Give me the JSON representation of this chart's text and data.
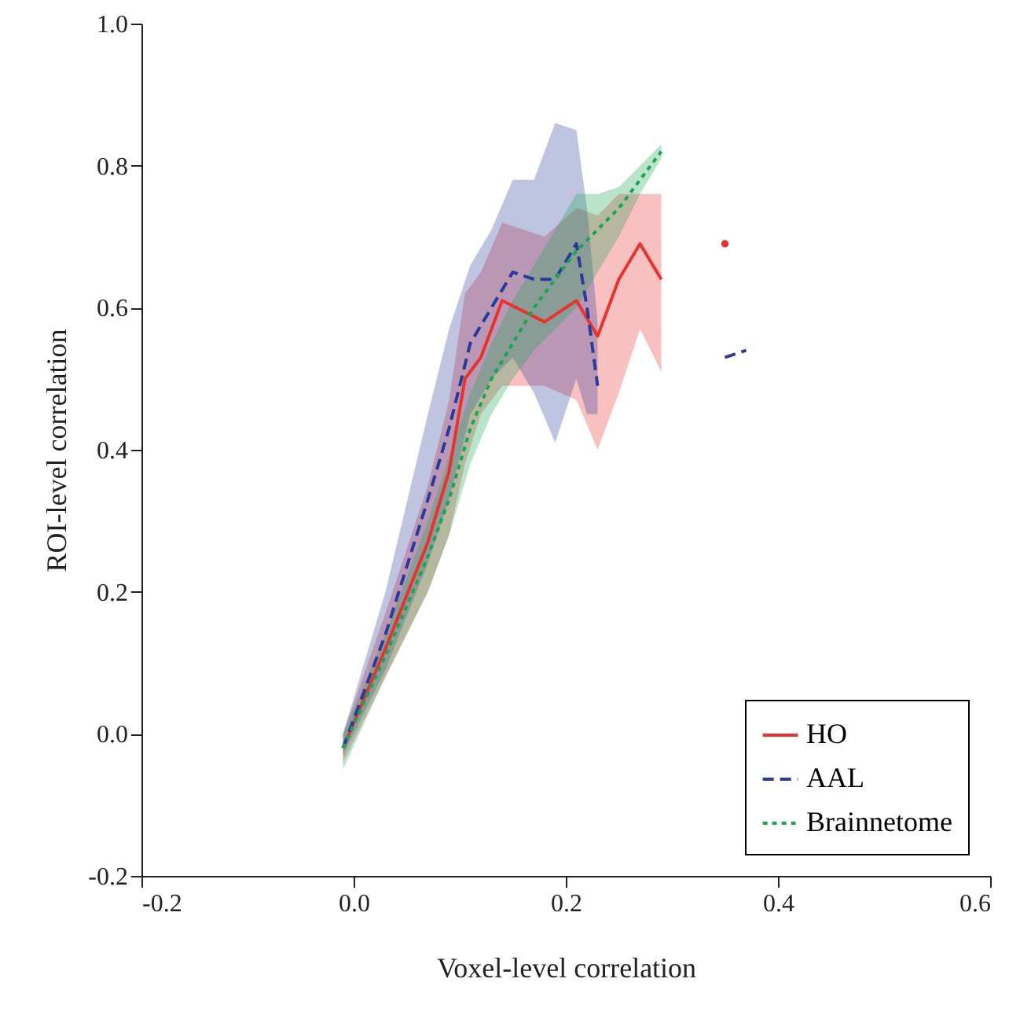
{
  "chart_data": {
    "type": "line",
    "xlabel": "Voxel-level correlation",
    "ylabel": "ROI-level correlation",
    "xlim": [
      -0.2,
      0.6
    ],
    "ylim": [
      -0.2,
      1.0
    ],
    "xticks": [
      -0.2,
      {
        "value": 0,
        "label": "0.0"
      },
      0.2,
      0.4,
      0.6
    ],
    "yticks": [
      -0.2,
      {
        "value": 0,
        "label": "0.0"
      },
      0.2,
      0.4,
      0.6,
      0.8,
      {
        "value": 1,
        "label": "1.0"
      }
    ],
    "grid": false,
    "legend": "bottom right",
    "series": [
      {
        "name": "HO",
        "color": "#e8322d",
        "line_style": "solid",
        "x": [
          -0.01,
          0.03,
          0.07,
          0.09,
          0.105,
          0.12,
          0.14,
          0.18,
          0.21,
          0.23,
          0.25,
          0.27,
          0.29
        ],
        "values": [
          -0.02,
          0.12,
          0.27,
          0.37,
          0.5,
          0.53,
          0.61,
          0.58,
          0.61,
          0.56,
          0.64,
          0.69,
          0.64
        ],
        "lower": [
          -0.04,
          0.08,
          0.2,
          0.28,
          0.38,
          0.45,
          0.49,
          0.49,
          0.47,
          0.4,
          0.48,
          0.57,
          0.51
        ],
        "upper": [
          0.0,
          0.17,
          0.35,
          0.47,
          0.62,
          0.65,
          0.72,
          0.7,
          0.74,
          0.73,
          0.76,
          0.76,
          0.76
        ]
      },
      {
        "name": "AAL",
        "color": "#2b3a9a",
        "line_style": "dashed",
        "x": [
          -0.01,
          0.03,
          0.07,
          0.09,
          0.11,
          0.13,
          0.15,
          0.17,
          0.19,
          0.21,
          0.22,
          0.23
        ],
        "values": [
          -0.02,
          0.14,
          0.33,
          0.43,
          0.55,
          0.6,
          0.65,
          0.64,
          0.64,
          0.69,
          0.6,
          0.49
        ],
        "lower": [
          -0.03,
          0.09,
          0.24,
          0.33,
          0.45,
          0.5,
          0.53,
          0.48,
          0.41,
          0.5,
          0.45,
          0.45
        ],
        "upper": [
          0.0,
          0.2,
          0.45,
          0.57,
          0.66,
          0.71,
          0.78,
          0.78,
          0.86,
          0.85,
          0.74,
          0.58
        ]
      },
      {
        "color": "#2b3a9a",
        "line_style": "dashed",
        "x": [
          0.35,
          0.37
        ],
        "values": [
          0.53,
          0.54
        ]
      },
      {
        "name": "Brainnetome",
        "color": "#1aa550",
        "line_style": "dotted",
        "x": [
          -0.01,
          0.03,
          0.07,
          0.09,
          0.11,
          0.13,
          0.15,
          0.17,
          0.19,
          0.21,
          0.23,
          0.25,
          0.27,
          0.29
        ],
        "values": [
          -0.02,
          0.11,
          0.25,
          0.33,
          0.43,
          0.5,
          0.55,
          0.6,
          0.64,
          0.68,
          0.71,
          0.74,
          0.78,
          0.82
        ],
        "lower": [
          -0.05,
          0.08,
          0.2,
          0.28,
          0.38,
          0.45,
          0.5,
          0.54,
          0.57,
          0.6,
          0.65,
          0.7,
          0.76,
          0.81
        ],
        "upper": [
          0.0,
          0.14,
          0.3,
          0.39,
          0.48,
          0.55,
          0.61,
          0.66,
          0.71,
          0.76,
          0.76,
          0.77,
          0.8,
          0.83
        ]
      },
      {
        "type": "scatter",
        "color": "#e8322d",
        "marker": "circle",
        "x": [
          0.35
        ],
        "values": [
          0.69
        ]
      }
    ]
  }
}
